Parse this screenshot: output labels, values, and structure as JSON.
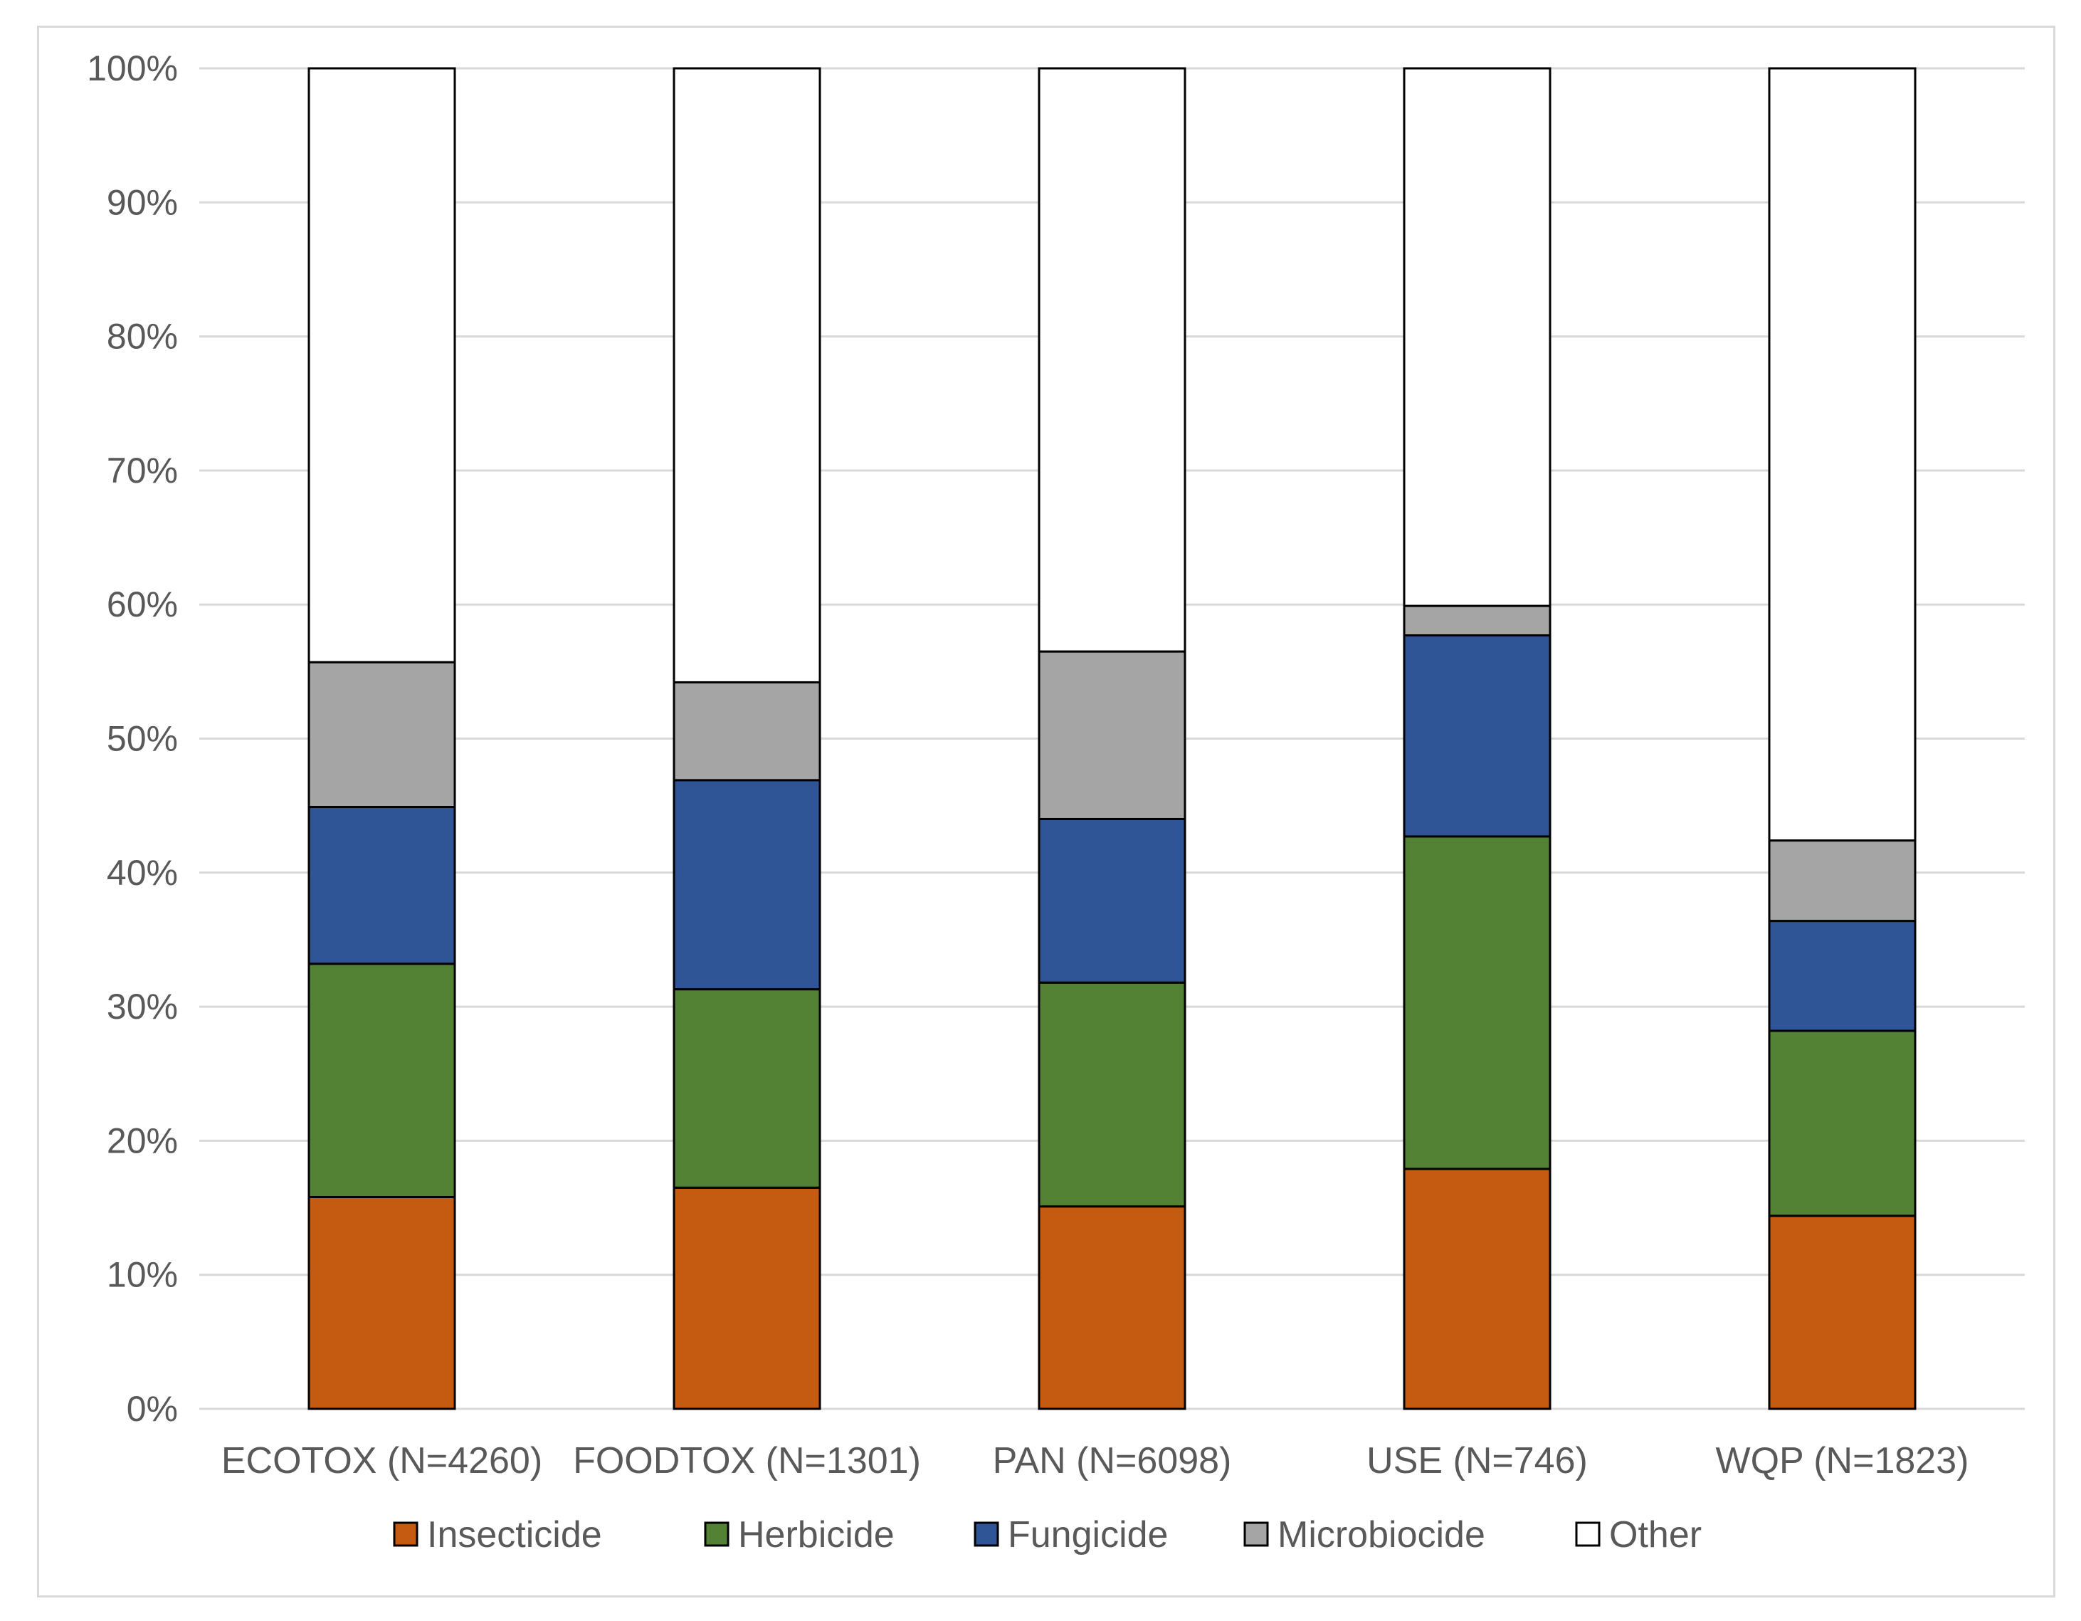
{
  "chart_data": {
    "type": "bar",
    "stacked": true,
    "percent_stacked": true,
    "categories": [
      "ECOTOX (N=4260)",
      "FOODTOX (N=1301)",
      "PAN (N=6098)",
      "USE (N=746)",
      "WQP (N=1823)"
    ],
    "series": [
      {
        "name": "Insecticide",
        "color": "#c55a11",
        "values": [
          15.8,
          16.5,
          15.1,
          17.9,
          14.4
        ]
      },
      {
        "name": "Herbicide",
        "color": "#548235",
        "values": [
          17.4,
          14.8,
          16.7,
          24.8,
          13.8
        ]
      },
      {
        "name": "Fungicide",
        "color": "#2f5597",
        "values": [
          11.7,
          15.6,
          12.2,
          15.0,
          8.2
        ]
      },
      {
        "name": "Microbiocide",
        "color": "#a5a5a5",
        "values": [
          10.8,
          7.3,
          12.5,
          2.2,
          6.0
        ]
      },
      {
        "name": "Other",
        "color": "#ffffff",
        "values": [
          44.3,
          45.8,
          43.5,
          40.1,
          57.6
        ]
      }
    ],
    "y_ticks": [
      "0%",
      "10%",
      "20%",
      "30%",
      "40%",
      "50%",
      "60%",
      "70%",
      "80%",
      "90%",
      "100%"
    ],
    "ylim": [
      0,
      100
    ],
    "grid": true,
    "legend_position": "bottom",
    "title": "",
    "xlabel": "",
    "ylabel": ""
  }
}
